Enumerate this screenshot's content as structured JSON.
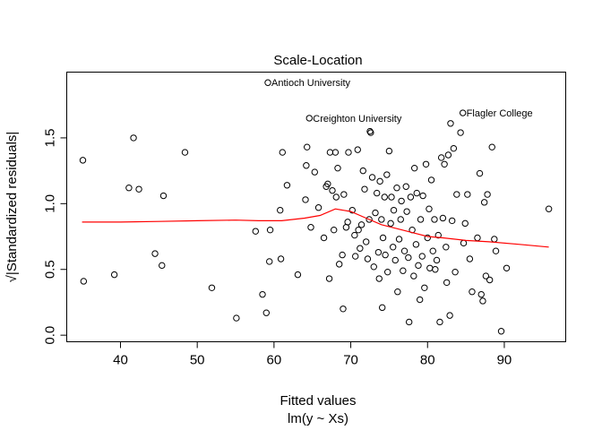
{
  "chart_data": {
    "type": "scatter",
    "title": "Scale-Location",
    "xlabel": "Fitted values",
    "subtitle": "lm(y ~ Xs)",
    "ylabel": "√|Standardized residuals|",
    "xlim": [
      33,
      98
    ],
    "ylim": [
      -0.05,
      2.0
    ],
    "x_ticks": [
      40,
      50,
      60,
      70,
      80,
      90
    ],
    "y_ticks": [
      0.0,
      0.5,
      1.0,
      1.5
    ],
    "y_tick_labels": [
      "0.0",
      "0.5",
      "1.0",
      "1.5"
    ],
    "grid": false,
    "point_color": "#000000",
    "smooth_color": "#ff0000",
    "annotations": [
      {
        "label": "Antioch University",
        "x": 59.2,
        "y": 1.92
      },
      {
        "label": "Flagler College",
        "x": 84.6,
        "y": 1.69
      },
      {
        "label": "Creighton University",
        "x": 64.6,
        "y": 1.65
      }
    ],
    "smooth": [
      [
        35,
        0.86
      ],
      [
        40,
        0.86
      ],
      [
        45,
        0.865
      ],
      [
        50,
        0.87
      ],
      [
        55,
        0.875
      ],
      [
        58,
        0.87
      ],
      [
        61,
        0.87
      ],
      [
        64,
        0.89
      ],
      [
        66,
        0.91
      ],
      [
        68,
        0.96
      ],
      [
        70,
        0.94
      ],
      [
        72,
        0.89
      ],
      [
        74,
        0.84
      ],
      [
        76,
        0.81
      ],
      [
        78,
        0.78
      ],
      [
        80,
        0.75
      ],
      [
        82,
        0.74
      ],
      [
        85,
        0.72
      ],
      [
        88,
        0.71
      ],
      [
        92,
        0.69
      ],
      [
        95.8,
        0.67
      ]
    ],
    "points": [
      [
        35.1,
        1.33
      ],
      [
        35.2,
        0.41
      ],
      [
        39.2,
        0.46
      ],
      [
        41.1,
        1.12
      ],
      [
        41.7,
        1.5
      ],
      [
        42.4,
        1.11
      ],
      [
        44.5,
        0.62
      ],
      [
        45.4,
        0.53
      ],
      [
        45.6,
        1.06
      ],
      [
        48.4,
        1.39
      ],
      [
        51.9,
        0.36
      ],
      [
        55.1,
        0.13
      ],
      [
        57.6,
        0.79
      ],
      [
        58.5,
        0.31
      ],
      [
        59.0,
        0.17
      ],
      [
        59.2,
        1.92
      ],
      [
        59.4,
        0.56
      ],
      [
        59.5,
        0.8
      ],
      [
        60.8,
        0.95
      ],
      [
        60.9,
        0.58
      ],
      [
        61.1,
        1.39
      ],
      [
        61.7,
        1.14
      ],
      [
        63.1,
        0.46
      ],
      [
        64.1,
        1.03
      ],
      [
        64.2,
        1.29
      ],
      [
        64.3,
        1.43
      ],
      [
        64.6,
        1.65
      ],
      [
        64.8,
        0.82
      ],
      [
        65.3,
        1.24
      ],
      [
        65.8,
        0.97
      ],
      [
        66.5,
        0.74
      ],
      [
        66.8,
        1.13
      ],
      [
        67.0,
        1.15
      ],
      [
        67.2,
        0.43
      ],
      [
        67.3,
        1.39
      ],
      [
        67.6,
        1.1
      ],
      [
        67.8,
        0.8
      ],
      [
        68.0,
        1.39
      ],
      [
        68.1,
        1.05
      ],
      [
        68.3,
        1.27
      ],
      [
        68.5,
        0.54
      ],
      [
        68.9,
        0.61
      ],
      [
        69.0,
        0.2
      ],
      [
        69.1,
        1.07
      ],
      [
        69.4,
        0.82
      ],
      [
        69.6,
        0.86
      ],
      [
        69.7,
        1.39
      ],
      [
        70.2,
        0.95
      ],
      [
        70.5,
        0.76
      ],
      [
        70.6,
        0.6
      ],
      [
        70.9,
        1.41
      ],
      [
        71.0,
        0.8
      ],
      [
        71.2,
        0.66
      ],
      [
        71.4,
        0.84
      ],
      [
        71.6,
        1.25
      ],
      [
        71.8,
        1.11
      ],
      [
        72.0,
        0.71
      ],
      [
        72.2,
        0.58
      ],
      [
        72.4,
        0.88
      ],
      [
        72.5,
        1.55
      ],
      [
        72.6,
        1.54
      ],
      [
        72.8,
        1.2
      ],
      [
        73.0,
        0.52
      ],
      [
        73.2,
        0.93
      ],
      [
        73.4,
        1.08
      ],
      [
        73.6,
        0.63
      ],
      [
        73.7,
        0.43
      ],
      [
        73.8,
        1.17
      ],
      [
        74.0,
        0.88
      ],
      [
        74.1,
        0.21
      ],
      [
        74.2,
        0.74
      ],
      [
        74.4,
        1.05
      ],
      [
        74.5,
        0.61
      ],
      [
        74.7,
        1.22
      ],
      [
        74.8,
        0.48
      ],
      [
        75.0,
        1.4
      ],
      [
        75.2,
        0.85
      ],
      [
        75.3,
        1.05
      ],
      [
        75.5,
        0.67
      ],
      [
        75.6,
        0.95
      ],
      [
        75.8,
        0.57
      ],
      [
        76.0,
        1.12
      ],
      [
        76.1,
        0.33
      ],
      [
        76.3,
        0.73
      ],
      [
        76.5,
        0.88
      ],
      [
        76.6,
        1.02
      ],
      [
        76.8,
        0.49
      ],
      [
        77.0,
        0.64
      ],
      [
        77.2,
        1.13
      ],
      [
        77.3,
        0.94
      ],
      [
        77.5,
        0.59
      ],
      [
        77.6,
        0.1
      ],
      [
        77.8,
        1.05
      ],
      [
        78.0,
        0.8
      ],
      [
        78.2,
        0.45
      ],
      [
        78.3,
        1.27
      ],
      [
        78.5,
        0.69
      ],
      [
        78.6,
        1.08
      ],
      [
        78.8,
        0.53
      ],
      [
        79.0,
        0.27
      ],
      [
        79.1,
        0.88
      ],
      [
        79.3,
        0.6
      ],
      [
        79.4,
        1.06
      ],
      [
        79.6,
        0.36
      ],
      [
        79.8,
        1.3
      ],
      [
        80.0,
        0.74
      ],
      [
        80.2,
        0.96
      ],
      [
        80.3,
        0.51
      ],
      [
        80.5,
        1.18
      ],
      [
        80.7,
        0.64
      ],
      [
        80.9,
        0.88
      ],
      [
        81.0,
        0.5
      ],
      [
        81.2,
        0.57
      ],
      [
        81.4,
        0.76
      ],
      [
        81.6,
        0.1
      ],
      [
        81.8,
        1.35
      ],
      [
        82.0,
        0.89
      ],
      [
        82.2,
        1.3
      ],
      [
        82.4,
        0.67
      ],
      [
        82.5,
        0.4
      ],
      [
        82.7,
        1.37
      ],
      [
        82.9,
        0.15
      ],
      [
        83.0,
        1.61
      ],
      [
        83.2,
        0.87
      ],
      [
        83.4,
        1.42
      ],
      [
        83.6,
        0.48
      ],
      [
        83.8,
        1.07
      ],
      [
        84.3,
        1.54
      ],
      [
        84.6,
        1.69
      ],
      [
        84.7,
        0.7
      ],
      [
        84.9,
        0.85
      ],
      [
        85.2,
        1.07
      ],
      [
        85.5,
        0.58
      ],
      [
        85.8,
        0.33
      ],
      [
        86.5,
        0.74
      ],
      [
        86.8,
        1.23
      ],
      [
        87.0,
        0.31
      ],
      [
        87.2,
        0.26
      ],
      [
        87.4,
        1.01
      ],
      [
        87.6,
        0.45
      ],
      [
        87.8,
        1.07
      ],
      [
        88.1,
        0.42
      ],
      [
        88.4,
        1.43
      ],
      [
        88.7,
        0.73
      ],
      [
        88.9,
        0.64
      ],
      [
        89.6,
        0.03
      ],
      [
        90.3,
        0.51
      ],
      [
        95.8,
        0.96
      ]
    ]
  }
}
